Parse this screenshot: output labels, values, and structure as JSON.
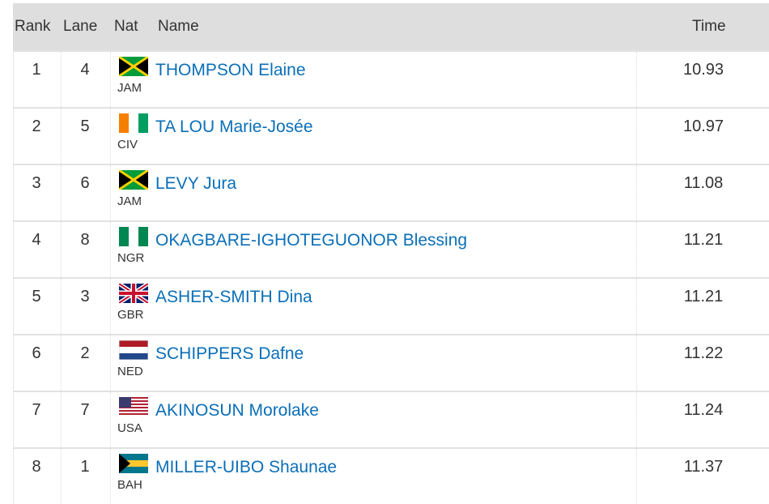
{
  "table": {
    "columns": [
      "Rank",
      "Lane",
      "Nat",
      "Name",
      "Time"
    ],
    "rows": [
      [
        1,
        4,
        "JAM",
        "THOMPSON Elaine",
        10.93
      ],
      [
        2,
        5,
        "CIV",
        "TA LOU Marie-Josée",
        10.97
      ],
      [
        3,
        6,
        "JAM",
        "LEVY Jura",
        11.08
      ],
      [
        4,
        8,
        "NGR",
        "OKAGBARE-IGHOTEGUONOR Blessing",
        11.21
      ],
      [
        5,
        3,
        "GBR",
        "ASHER-SMITH Dina",
        11.21
      ],
      [
        6,
        2,
        "NED",
        "SCHIPPERS Dafne",
        11.22
      ],
      [
        7,
        7,
        "USA",
        "AKINOSUN Morolake",
        11.24
      ],
      [
        8,
        1,
        "BAH",
        "MILLER-UIBO Shaunae",
        11.37
      ]
    ]
  }
}
